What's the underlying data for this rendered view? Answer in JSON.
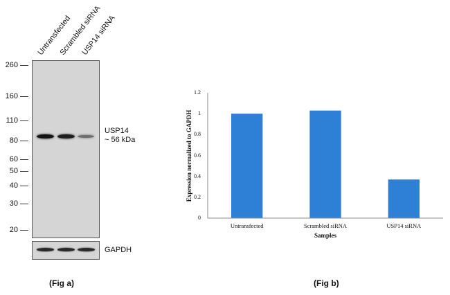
{
  "fig_a": {
    "lanes": [
      "Untransfected",
      "Scrambled siRNA",
      "USP14 siRNA"
    ],
    "markers": [
      "260",
      "160",
      "110",
      "80",
      "60",
      "50",
      "40",
      "30",
      "20"
    ],
    "marker_kda": [
      260,
      160,
      110,
      80,
      60,
      50,
      40,
      30,
      20
    ],
    "target_label": "USP14",
    "target_size": "~ 56 kDa",
    "loading_label": "GAPDH",
    "usp14_band_intensity": [
      0.95,
      0.9,
      0.5
    ],
    "gapdh_band_intensity": [
      0.85,
      0.85,
      0.85
    ],
    "caption": "(Fig a)"
  },
  "chart_data": {
    "type": "bar",
    "categories": [
      "Untransfected",
      "Scrambled siRNA",
      "USP14 siRNA"
    ],
    "values": [
      1.0,
      1.03,
      0.37
    ],
    "title": "",
    "xlabel": "Samples",
    "ylabel": "Expression normalized to GAPDH",
    "ylim": [
      0,
      1.2
    ],
    "yticks": [
      0,
      0.2,
      0.4,
      0.6,
      0.8,
      1,
      1.2
    ],
    "ytick_labels": [
      "0",
      "0.2",
      "0.4",
      "0.6",
      "0.8",
      "1",
      "1.2"
    ],
    "grid": false,
    "bar_color": "#2e7fd6"
  },
  "fig_b": {
    "caption": "(Fig b)"
  }
}
